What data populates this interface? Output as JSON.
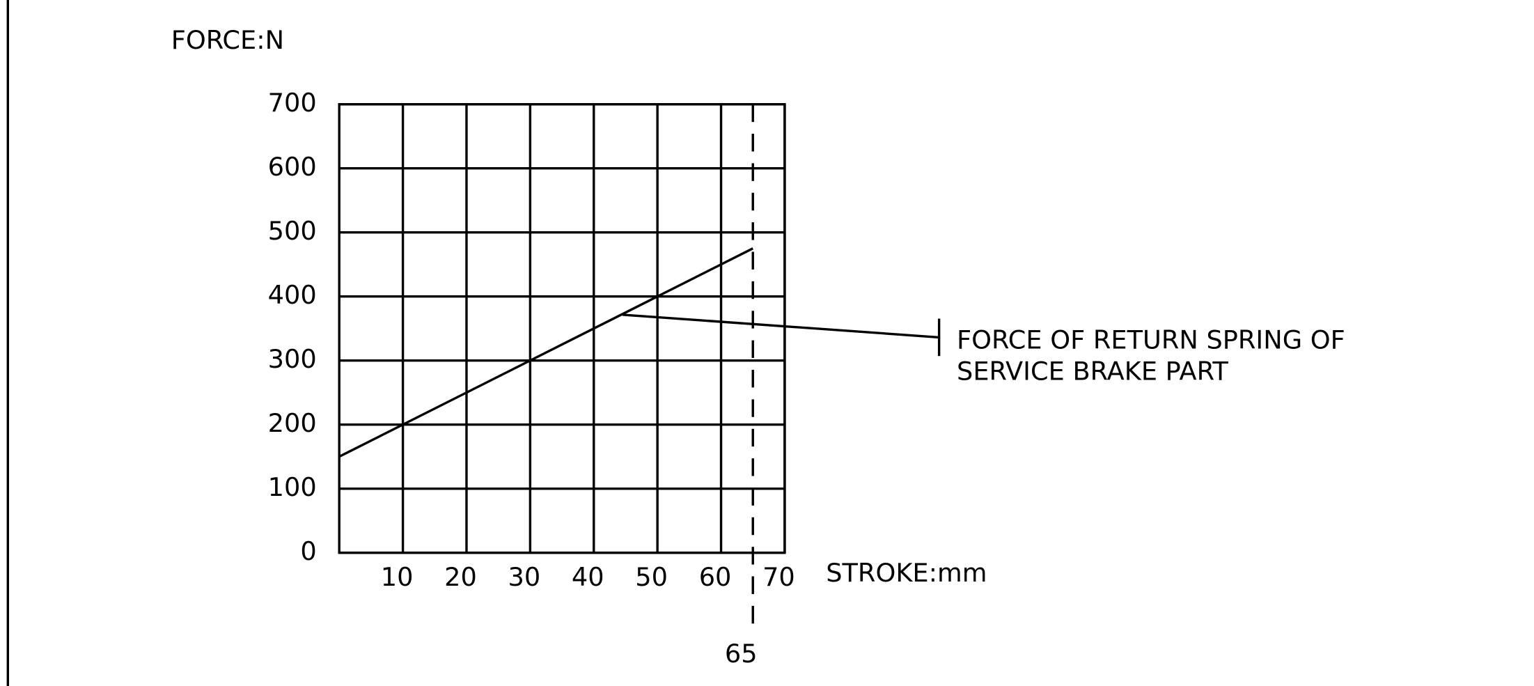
{
  "chart_data": {
    "type": "line",
    "y_label": "FORCE:N",
    "x_label": "STROKE:mm",
    "x": [
      0,
      65
    ],
    "values": [
      150,
      475
    ],
    "color": "#000000",
    "xlim": [
      0,
      70
    ],
    "xticks": [
      10,
      20,
      30,
      40,
      50,
      60,
      70
    ],
    "ylim": [
      0,
      700
    ],
    "yticks": [
      0,
      100,
      200,
      300,
      400,
      500,
      600,
      700
    ],
    "grid": true,
    "reference_line": {
      "x": 65
    },
    "annotation": [
      "FORCE OF RETURN SPRING OF",
      "SERVICE BRAKE PART"
    ]
  }
}
